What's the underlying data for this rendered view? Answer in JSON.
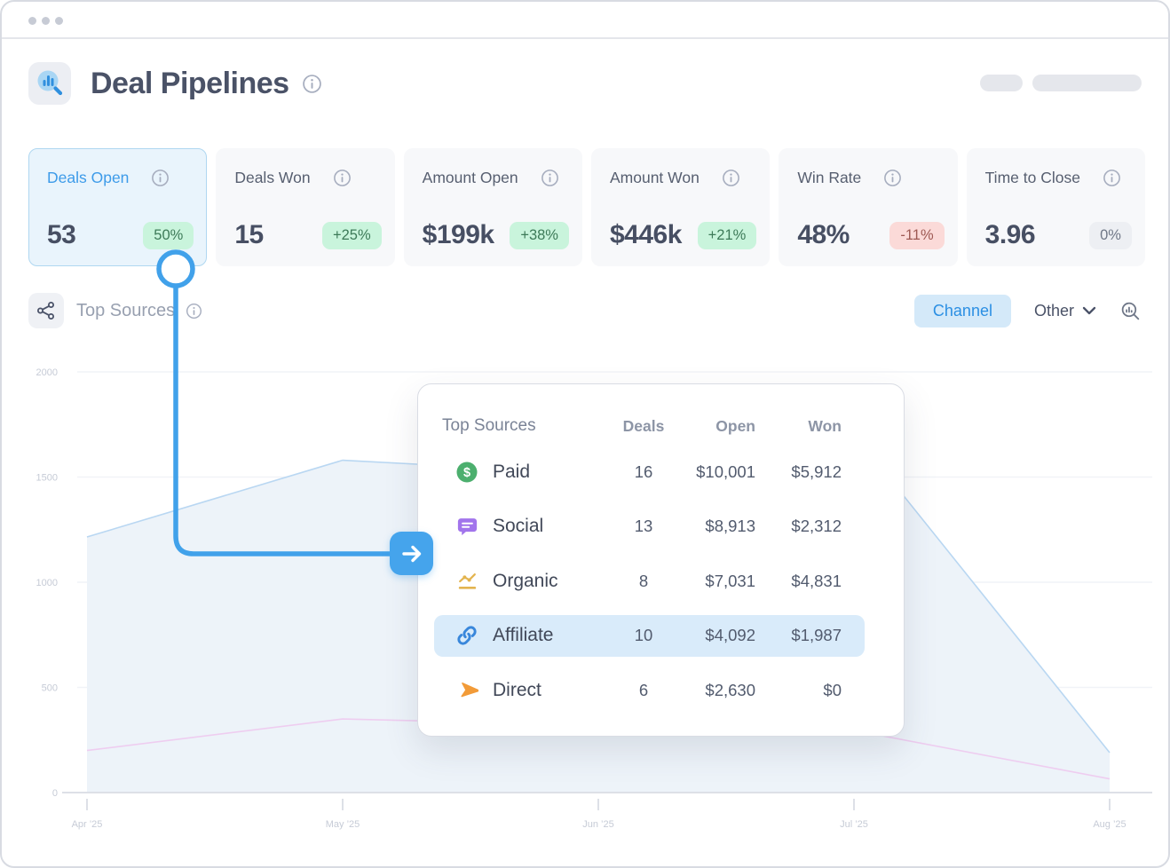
{
  "header": {
    "title": "Deal Pipelines"
  },
  "kpis": [
    {
      "label": "Deals Open",
      "value": "53",
      "delta": "50%",
      "delta_type": "positive",
      "active": true
    },
    {
      "label": "Deals Won",
      "value": "15",
      "delta": "+25%",
      "delta_type": "positive",
      "active": false
    },
    {
      "label": "Amount Open",
      "value": "$199k",
      "delta": "+38%",
      "delta_type": "positive",
      "active": false
    },
    {
      "label": "Amount Won",
      "value": "$446k",
      "delta": "+21%",
      "delta_type": "positive",
      "active": false
    },
    {
      "label": "Win Rate",
      "value": "48%",
      "delta": "-11%",
      "delta_type": "negative",
      "active": false
    },
    {
      "label": "Time to Close",
      "value": "3.96",
      "delta": "0%",
      "delta_type": "neutral",
      "active": false
    }
  ],
  "section": {
    "title": "Top Sources",
    "channel_button": "Channel",
    "other_dropdown": "Other"
  },
  "popup": {
    "title": "Top Sources",
    "columns": {
      "deals": "Deals",
      "open": "Open",
      "won": "Won"
    },
    "rows": [
      {
        "name": "Paid",
        "icon": "dollar-icon",
        "deals": "16",
        "open": "$10,001",
        "won": "$5,912",
        "highlight": false
      },
      {
        "name": "Social",
        "icon": "chat-icon",
        "deals": "13",
        "open": "$8,913",
        "won": "$2,312",
        "highlight": false
      },
      {
        "name": "Organic",
        "icon": "trend-icon",
        "deals": "8",
        "open": "$7,031",
        "won": "$4,831",
        "highlight": false
      },
      {
        "name": "Affiliate",
        "icon": "link-icon",
        "deals": "10",
        "open": "$4,092",
        "won": "$1,987",
        "highlight": true
      },
      {
        "name": "Direct",
        "icon": "cursor-icon",
        "deals": "6",
        "open": "$2,630",
        "won": "$0",
        "highlight": false
      }
    ]
  },
  "chart_data": {
    "type": "area",
    "title": "Top Sources",
    "x": [
      "Apr ’25",
      "May ’25",
      "Jun ’25",
      "Jul ’25",
      "Aug ’25"
    ],
    "series": [
      {
        "name": "open",
        "values": [
          1215,
          1580,
          1515,
          1705,
          190
        ],
        "line_color": "#B9D7F2",
        "fill_color": "#EDF3F9",
        "area": true
      },
      {
        "name": "won",
        "values": [
          200,
          350,
          320,
          295,
          65
        ],
        "line_color": "#EECDF0",
        "fill_color": "none",
        "area": false
      }
    ],
    "ylim": [
      0,
      2000
    ],
    "y_ticks": [
      0,
      500,
      1000,
      1500,
      2000
    ],
    "grid": true,
    "legend": "none"
  },
  "colors": {
    "accent_blue": "#41A1EA",
    "green_badge_bg": "#C9F4DC",
    "red_badge_bg": "#FBDAD8",
    "highlight_row": "#D9EBFA",
    "paid_green": "#4CAF6E",
    "social_purple": "#A275EC",
    "organic_amber": "#E3B44F",
    "affiliate_blue": "#3987DB",
    "direct_orange": "#F29B38"
  }
}
